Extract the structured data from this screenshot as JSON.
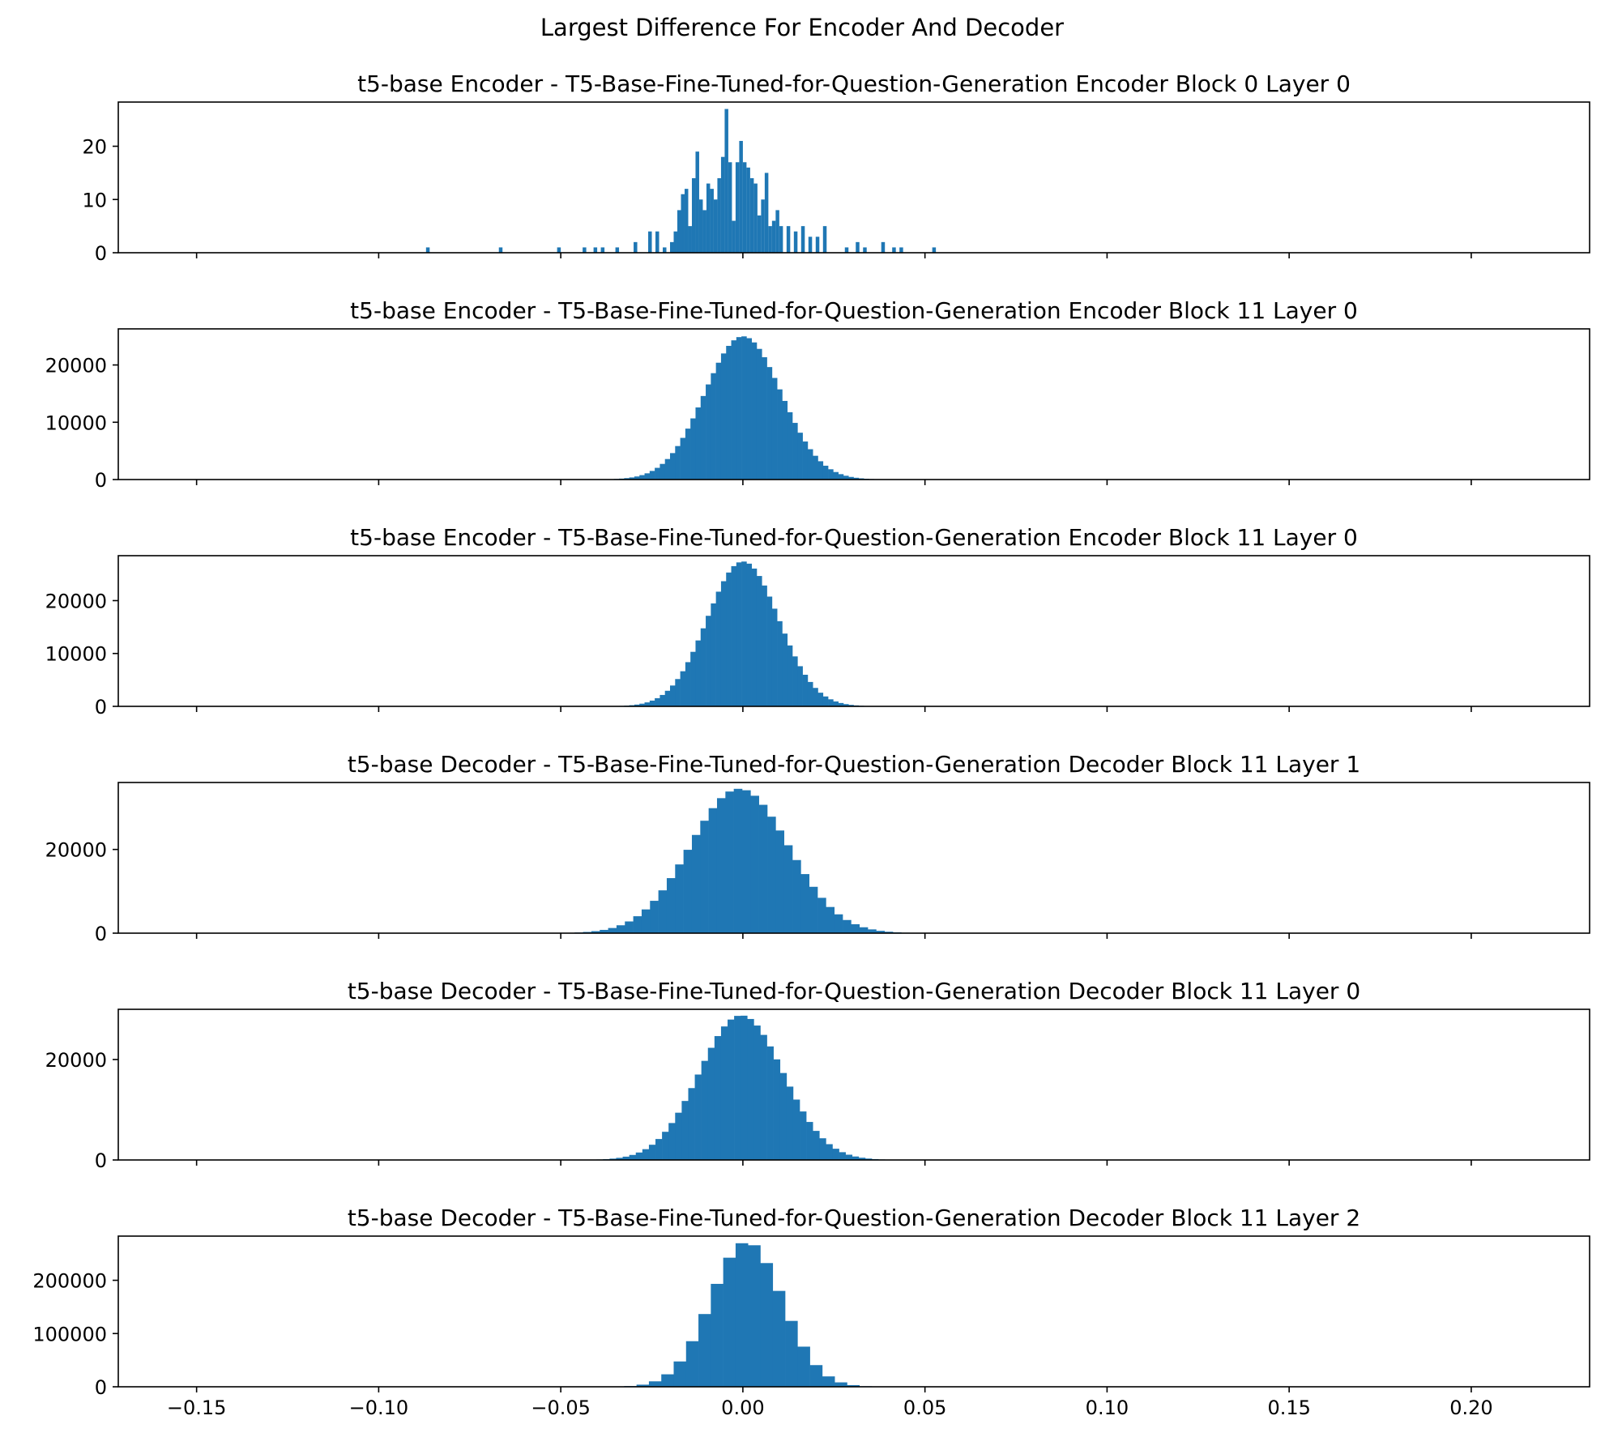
{
  "suptitle": "Largest Difference For Encoder And Decoder",
  "colors": {
    "bar": "#1f77b4",
    "axis": "#000000",
    "background": "#ffffff"
  },
  "chart_data": [
    {
      "type": "bar",
      "title": "t5-base Encoder - T5-Base-Fine-Tuned-for-Question-Generation Encoder Block 0 Layer 0",
      "xlim": [
        -0.1715,
        0.2325
      ],
      "ylim": [
        0,
        28.3
      ],
      "yticks": [
        0,
        10,
        20
      ],
      "bars": [
        [
          -0.0865,
          1
        ],
        [
          -0.0665,
          1
        ],
        [
          -0.0505,
          1
        ],
        [
          -0.0435,
          1
        ],
        [
          -0.0405,
          1
        ],
        [
          -0.0385,
          1
        ],
        [
          -0.0345,
          1
        ],
        [
          -0.0295,
          2
        ],
        [
          -0.0255,
          4
        ],
        [
          -0.0235,
          4
        ],
        [
          -0.0215,
          1
        ],
        [
          -0.0195,
          2
        ],
        [
          -0.0185,
          4
        ],
        [
          -0.0175,
          8
        ],
        [
          -0.0165,
          11
        ],
        [
          -0.0155,
          12
        ],
        [
          -0.0145,
          5
        ],
        [
          -0.0135,
          14
        ],
        [
          -0.0125,
          19
        ],
        [
          -0.0115,
          10
        ],
        [
          -0.0105,
          8
        ],
        [
          -0.0095,
          13
        ],
        [
          -0.0085,
          12
        ],
        [
          -0.0075,
          10
        ],
        [
          -0.0065,
          14
        ],
        [
          -0.0055,
          18
        ],
        [
          -0.0045,
          27
        ],
        [
          -0.0035,
          17
        ],
        [
          -0.0025,
          6
        ],
        [
          -0.0015,
          17
        ],
        [
          -0.0005,
          21
        ],
        [
          0.0005,
          17
        ],
        [
          0.0015,
          16
        ],
        [
          0.0025,
          14
        ],
        [
          0.0035,
          13
        ],
        [
          0.0045,
          7
        ],
        [
          0.0055,
          10
        ],
        [
          0.0065,
          15
        ],
        [
          0.0075,
          5
        ],
        [
          0.0085,
          6
        ],
        [
          0.0095,
          8
        ],
        [
          0.0105,
          5
        ],
        [
          0.0125,
          5
        ],
        [
          0.0145,
          4
        ],
        [
          0.0165,
          5
        ],
        [
          0.0185,
          3
        ],
        [
          0.0205,
          3
        ],
        [
          0.0225,
          5
        ],
        [
          0.0285,
          1
        ],
        [
          0.0315,
          2
        ],
        [
          0.0335,
          1
        ],
        [
          0.0385,
          2
        ],
        [
          0.0415,
          1
        ],
        [
          0.0435,
          1
        ],
        [
          0.0525,
          1
        ]
      ]
    },
    {
      "type": "bar",
      "title": "t5-base Encoder - T5-Base-Fine-Tuned-for-Question-Generation Encoder Block 11 Layer 0",
      "xlim": [
        -0.1715,
        0.2325
      ],
      "ylim": [
        0,
        26300
      ],
      "yticks": [
        0,
        10000,
        20000
      ],
      "gaussian": {
        "mu": 0.0,
        "sigma": 0.0105,
        "peak": 25000,
        "bin_width": 0.0014,
        "from": -0.055,
        "to": 0.055
      }
    },
    {
      "type": "bar",
      "title": "t5-base Encoder - T5-Base-Fine-Tuned-for-Question-Generation Encoder Block 11 Layer 0",
      "xlim": [
        -0.1715,
        0.2325
      ],
      "ylim": [
        0,
        28500
      ],
      "yticks": [
        0,
        10000,
        20000
      ],
      "gaussian": {
        "mu": 0.0,
        "sigma": 0.0098,
        "peak": 27400,
        "bin_width": 0.0014,
        "from": -0.055,
        "to": 0.055
      }
    },
    {
      "type": "bar",
      "title": "t5-base Decoder - T5-Base-Fine-Tuned-for-Question-Generation Decoder Block 11 Layer 1",
      "xlim": [
        -0.1715,
        0.2325
      ],
      "ylim": [
        0,
        36000
      ],
      "yticks": [
        0,
        20000
      ],
      "gaussian": {
        "mu": -0.001,
        "sigma": 0.0135,
        "peak": 34500,
        "bin_width": 0.0023,
        "from": -0.06,
        "to": 0.07
      }
    },
    {
      "type": "bar",
      "title": "t5-base Decoder - T5-Base-Fine-Tuned-for-Question-Generation Decoder Block 11 Layer 0",
      "xlim": [
        -0.1715,
        0.2325
      ],
      "ylim": [
        0,
        30000
      ],
      "yticks": [
        0,
        20000
      ],
      "gaussian": {
        "mu": -0.0005,
        "sigma": 0.0115,
        "peak": 28800,
        "bin_width": 0.0018,
        "from": -0.06,
        "to": 0.06
      }
    },
    {
      "type": "bar",
      "title": "t5-base Decoder - T5-Base-Fine-Tuned-for-Question-Generation Decoder Block 11 Layer 2",
      "xlim": [
        -0.1715,
        0.2325
      ],
      "ylim": [
        0,
        283000
      ],
      "yticks": [
        0,
        100000,
        200000
      ],
      "xticks": [
        -0.15,
        -0.1,
        -0.05,
        0.0,
        0.05,
        0.1,
        0.15,
        0.2
      ],
      "xticklabels": [
        "−0.15",
        "−0.10",
        "−0.05",
        "0.00",
        "0.05",
        "0.10",
        "0.15",
        "0.20"
      ],
      "gaussian": {
        "mu": 0.001,
        "sigma": 0.0098,
        "peak": 272000,
        "bin_width": 0.0034,
        "from": -0.07,
        "to": 0.07
      }
    }
  ]
}
